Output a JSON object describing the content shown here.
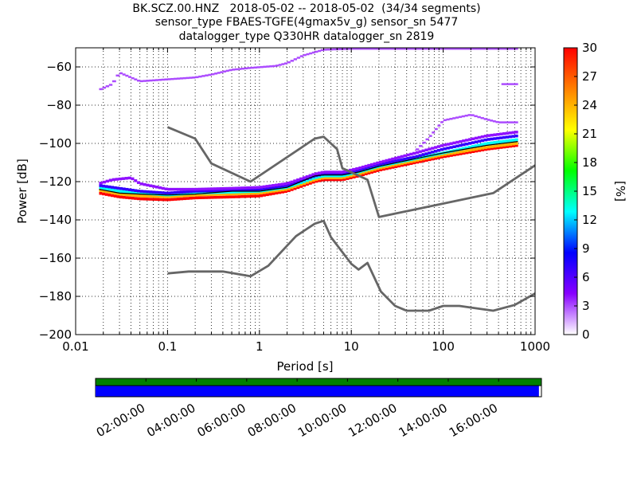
{
  "title_lines": [
    "BK.SCZ.00.HNZ   2018-05-02 -- 2018-05-02  (34/34 segments)",
    "sensor_type FBAES-TGFE(4gmax5v_g) sensor_sn 5477",
    "datalogger_type Q330HR datalogger_sn 2819"
  ],
  "chart_data": {
    "type": "heatmap",
    "xlabel": "Period [s]",
    "ylabel": "Power [dB]",
    "xscale": "log",
    "xlim": [
      0.01,
      1000
    ],
    "ylim": [
      -200,
      -50
    ],
    "x_ticks": [
      {
        "value": 0.01,
        "label": "0.01"
      },
      {
        "value": 0.1,
        "label": "0.1"
      },
      {
        "value": 1,
        "label": "1"
      },
      {
        "value": 10,
        "label": "10"
      },
      {
        "value": 100,
        "label": "100"
      },
      {
        "value": 1000,
        "label": "1000"
      }
    ],
    "y_ticks": [
      {
        "value": -200,
        "label": "−200"
      },
      {
        "value": -180,
        "label": "−180"
      },
      {
        "value": -160,
        "label": "−160"
      },
      {
        "value": -140,
        "label": "−140"
      },
      {
        "value": -120,
        "label": "−120"
      },
      {
        "value": -100,
        "label": "−100"
      },
      {
        "value": -80,
        "label": "−80"
      },
      {
        "value": -60,
        "label": "−60"
      }
    ],
    "grid": "dotted",
    "colorbar": {
      "label": "[%]",
      "min": 0,
      "max": 30,
      "ticks": [
        {
          "value": 0,
          "label": "0"
        },
        {
          "value": 3,
          "label": "3"
        },
        {
          "value": 6,
          "label": "6"
        },
        {
          "value": 9,
          "label": "9"
        },
        {
          "value": 12,
          "label": "12"
        },
        {
          "value": 15,
          "label": "15"
        },
        {
          "value": 18,
          "label": "18"
        },
        {
          "value": 21,
          "label": "21"
        },
        {
          "value": 24,
          "label": "24"
        },
        {
          "value": 27,
          "label": "27"
        },
        {
          "value": 30,
          "label": "30"
        }
      ],
      "colors": [
        "#ffffff",
        "#8800ff",
        "#0000ff",
        "#00ffff",
        "#00ff00",
        "#ffff00",
        "#ff8000",
        "#ff0000"
      ]
    },
    "noise_models": [
      {
        "points": [
          [
            0.1,
            -91.5
          ],
          [
            0.2,
            -97.5
          ],
          [
            0.3,
            -110.5
          ],
          [
            0.8,
            -120
          ],
          [
            4,
            -97.5
          ],
          [
            5,
            -96.5
          ],
          [
            7,
            -103
          ],
          [
            8,
            -113
          ],
          [
            15,
            -119
          ],
          [
            20,
            -138.5
          ],
          [
            350,
            -126
          ],
          [
            1000,
            -111.5
          ]
        ]
      },
      {
        "points": [
          [
            0.1,
            -168
          ],
          [
            0.17,
            -167
          ],
          [
            0.4,
            -167
          ],
          [
            0.8,
            -169.5
          ],
          [
            1.25,
            -164
          ],
          [
            2.5,
            -148.5
          ],
          [
            4,
            -142
          ],
          [
            5,
            -140.5
          ],
          [
            6,
            -149
          ],
          [
            10,
            -163
          ],
          [
            12,
            -166
          ],
          [
            15,
            -162.5
          ],
          [
            21,
            -177.5
          ],
          [
            30,
            -185
          ],
          [
            40,
            -187.5
          ],
          [
            70,
            -187.5
          ],
          [
            100,
            -185
          ],
          [
            150,
            -185
          ],
          [
            350,
            -187.5
          ],
          [
            600,
            -184.5
          ],
          [
            1000,
            -178.5
          ]
        ]
      }
    ],
    "mean_curve": [
      [
        0.018,
        -124
      ],
      [
        0.03,
        -126
      ],
      [
        0.05,
        -126.5
      ],
      [
        0.1,
        -127
      ],
      [
        0.2,
        -126.5
      ],
      [
        0.5,
        -125
      ],
      [
        1,
        -125
      ],
      [
        2,
        -123
      ],
      [
        4,
        -117
      ],
      [
        5,
        -116.5
      ],
      [
        8,
        -116.5
      ],
      [
        12,
        -115
      ],
      [
        20,
        -112
      ],
      [
        50,
        -108
      ],
      [
        100,
        -105
      ],
      [
        300,
        -101
      ],
      [
        650,
        -99
      ]
    ],
    "psd_bands": [
      {
        "points": [
          [
            0.018,
            -126
          ],
          [
            0.03,
            -128
          ],
          [
            0.05,
            -129
          ],
          [
            0.1,
            -129.5
          ],
          [
            0.2,
            -128.5
          ],
          [
            0.5,
            -128
          ],
          [
            1,
            -127.5
          ],
          [
            2,
            -125
          ],
          [
            4,
            -120
          ],
          [
            5,
            -119
          ],
          [
            8,
            -119
          ],
          [
            12,
            -117
          ],
          [
            20,
            -114
          ],
          [
            50,
            -110
          ],
          [
            100,
            -107
          ],
          [
            300,
            -103
          ],
          [
            650,
            -101
          ]
        ],
        "value": 30
      },
      {
        "points": [
          [
            0.018,
            -124.5
          ],
          [
            0.03,
            -126.5
          ],
          [
            0.05,
            -127.5
          ],
          [
            0.1,
            -128
          ],
          [
            0.2,
            -127
          ],
          [
            0.5,
            -126.5
          ],
          [
            1,
            -126
          ],
          [
            2,
            -124
          ],
          [
            4,
            -119
          ],
          [
            5,
            -118
          ],
          [
            8,
            -118
          ],
          [
            12,
            -116
          ],
          [
            20,
            -113
          ],
          [
            50,
            -109
          ],
          [
            100,
            -106
          ],
          [
            300,
            -102
          ],
          [
            650,
            -100
          ]
        ],
        "value": 24
      },
      {
        "points": [
          [
            0.018,
            -123
          ],
          [
            0.03,
            -125
          ],
          [
            0.05,
            -126
          ],
          [
            0.1,
            -127
          ],
          [
            0.2,
            -126
          ],
          [
            0.5,
            -125.5
          ],
          [
            1,
            -125
          ],
          [
            2,
            -123
          ],
          [
            4,
            -118
          ],
          [
            5,
            -117
          ],
          [
            8,
            -117
          ],
          [
            12,
            -115
          ],
          [
            20,
            -112
          ],
          [
            50,
            -108
          ],
          [
            100,
            -105
          ],
          [
            300,
            -100
          ],
          [
            650,
            -98
          ]
        ],
        "value": 13
      },
      {
        "points": [
          [
            0.018,
            -122
          ],
          [
            0.03,
            -123.5
          ],
          [
            0.05,
            -125
          ],
          [
            0.1,
            -126
          ],
          [
            0.2,
            -125
          ],
          [
            0.5,
            -124.5
          ],
          [
            1,
            -124
          ],
          [
            2,
            -122
          ],
          [
            4,
            -117
          ],
          [
            5,
            -116
          ],
          [
            8,
            -116
          ],
          [
            12,
            -114
          ],
          [
            20,
            -111
          ],
          [
            50,
            -107
          ],
          [
            100,
            -103
          ],
          [
            300,
            -98
          ],
          [
            650,
            -96
          ]
        ],
        "value": 7
      },
      {
        "points": [
          [
            0.018,
            -121
          ],
          [
            0.025,
            -119
          ],
          [
            0.04,
            -118
          ],
          [
            0.05,
            -121
          ],
          [
            0.1,
            -124
          ],
          [
            0.2,
            -124
          ],
          [
            0.5,
            -123.5
          ],
          [
            1,
            -123
          ],
          [
            2,
            -121
          ],
          [
            4,
            -116
          ],
          [
            5,
            -115
          ],
          [
            8,
            -115
          ],
          [
            12,
            -113
          ],
          [
            20,
            -110
          ],
          [
            50,
            -105
          ],
          [
            100,
            -101
          ],
          [
            300,
            -96
          ],
          [
            650,
            -94
          ]
        ],
        "value": 4
      }
    ],
    "outlier_bands": [
      {
        "points": [
          [
            0.018,
            -72
          ],
          [
            0.025,
            -69
          ],
          [
            0.03,
            -63
          ],
          [
            0.05,
            -67.5
          ],
          [
            0.1,
            -66.5
          ],
          [
            0.2,
            -65.5
          ],
          [
            0.3,
            -64
          ],
          [
            0.5,
            -61.5
          ],
          [
            0.8,
            -60.5
          ],
          [
            1.5,
            -59.5
          ],
          [
            2,
            -58
          ],
          [
            3,
            -54
          ],
          [
            5,
            -51
          ],
          [
            10,
            -50.5
          ],
          [
            100,
            -50.5
          ],
          [
            650,
            -50.5
          ]
        ],
        "value": 3
      },
      {
        "points": [
          [
            50,
            -104
          ],
          [
            70,
            -97
          ],
          [
            100,
            -88
          ],
          [
            200,
            -85
          ],
          [
            300,
            -87.5
          ],
          [
            400,
            -89
          ],
          [
            650,
            -89
          ]
        ],
        "value": 3
      },
      {
        "points": [
          [
            430,
            -69
          ],
          [
            650,
            -69
          ]
        ],
        "value": 3
      }
    ],
    "timeline": {
      "ticks": [
        "02:00:00",
        "04:00:00",
        "06:00:00",
        "08:00:00",
        "10:00:00",
        "12:00:00",
        "14:00:00",
        "16:00:00"
      ],
      "start_hour": 0.0,
      "end_hour": 17.7,
      "tick_hours": [
        2,
        4,
        6,
        8,
        10,
        12,
        14,
        16
      ],
      "bar_colors": {
        "top": "#008000",
        "bottom": "#0000ff"
      },
      "coverage_hours": [
        [
          0,
          17.6
        ]
      ]
    }
  }
}
